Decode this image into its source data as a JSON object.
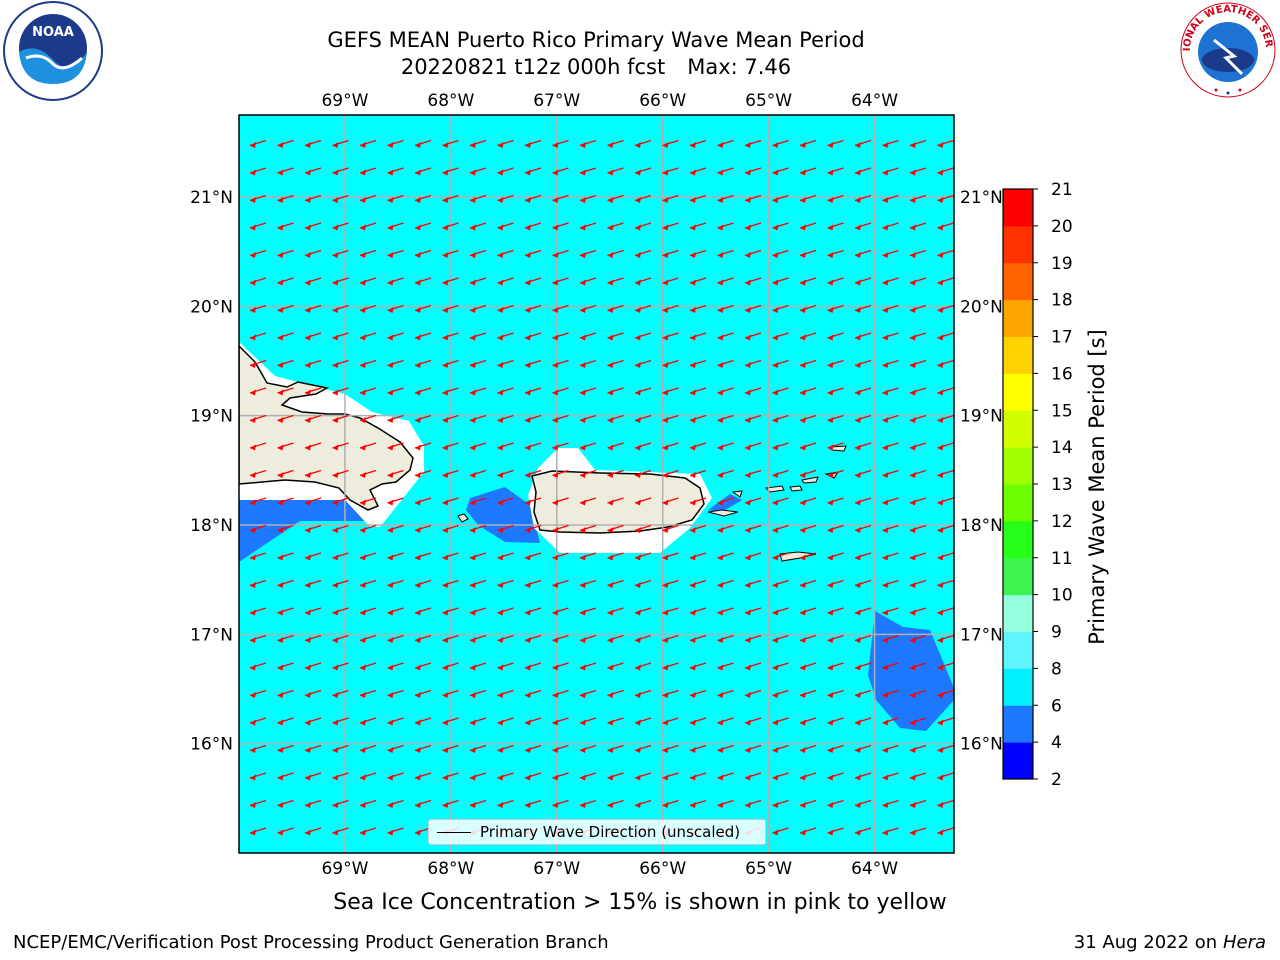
{
  "title": {
    "line1": "GEFS MEAN Puerto Rico Primary Wave Mean Period",
    "line2_date": "20220821 t12z 000h fcst",
    "line2_max": "Max: 7.46"
  },
  "map": {
    "extent": {
      "lon_min": -70.0,
      "lon_max": -63.25,
      "lat_min": 15.0,
      "lat_max": 21.75
    },
    "lon_ticks": [
      {
        "value": -69,
        "label": "69°W"
      },
      {
        "value": -68,
        "label": "68°W"
      },
      {
        "value": -67,
        "label": "67°W"
      },
      {
        "value": -66,
        "label": "66°W"
      },
      {
        "value": -65,
        "label": "65°W"
      },
      {
        "value": -64,
        "label": "64°W"
      }
    ],
    "lat_ticks": [
      {
        "value": 16,
        "label": "16°N"
      },
      {
        "value": 17,
        "label": "17°N"
      },
      {
        "value": 18,
        "label": "18°N"
      },
      {
        "value": 19,
        "label": "19°N"
      },
      {
        "value": 20,
        "label": "20°N"
      },
      {
        "value": 21,
        "label": "21°N"
      }
    ],
    "ocean_color": "#00ffff",
    "land_color": "#eeecdc",
    "arrow_color": "#ff0000",
    "gridlines": true,
    "dominant_wave_direction": "toward west (easterly swell)",
    "features": [
      "Hispaniola (east)",
      "Puerto Rico",
      "Virgin Islands",
      "St. Croix",
      "Mona Island"
    ]
  },
  "legend": {
    "label": "Primary Wave Direction (unscaled)",
    "placement": "bottom-center"
  },
  "colorbar": {
    "label": "Primary Wave Mean Period [s]",
    "levels": [
      2,
      4,
      6,
      8,
      9,
      10,
      11,
      12,
      13,
      14,
      15,
      16,
      17,
      18,
      19,
      20,
      21
    ],
    "colors": [
      "#0000ff",
      "#1e78ff",
      "#00f0ff",
      "#5ff5ff",
      "#96ffe0",
      "#3cf550",
      "#28ff19",
      "#6eff00",
      "#a0ff00",
      "#d2ff00",
      "#ffff00",
      "#ffd200",
      "#ffa500",
      "#ff6400",
      "#ff3200",
      "#ff0000"
    ]
  },
  "chart_data": {
    "type": "heatmap",
    "title": "GEFS MEAN Puerto Rico Primary Wave Mean Period",
    "subtitle": "20220821 t12z 000h fcst   Max: 7.46",
    "variable": "Primary Wave Mean Period [s]",
    "max": 7.46,
    "regions": [
      {
        "name": "open ocean",
        "period_bin": "6-8"
      },
      {
        "name": "Mona Passage",
        "period_bin": "4-6"
      },
      {
        "name": "south of Hispaniola coast",
        "period_bin": "4-6"
      },
      {
        "name": "southeast corner (≈16.2-17.2N, 63.3-64.1W)",
        "period_bin": "4-6"
      },
      {
        "name": "east of Puerto Rico (Vieques)",
        "period_bin": "4-6"
      }
    ]
  },
  "notes": {
    "ice": "Sea Ice Concentration > 15% is shown in pink to yellow"
  },
  "footer": {
    "left": "NCEP/EMC/Verification Post Processing Product Generation Branch",
    "date": "31 Aug 2022 on",
    "host": "Hera"
  },
  "logos": {
    "noaa": "NOAA",
    "nws": "NATIONAL WEATHER SERVICE"
  }
}
